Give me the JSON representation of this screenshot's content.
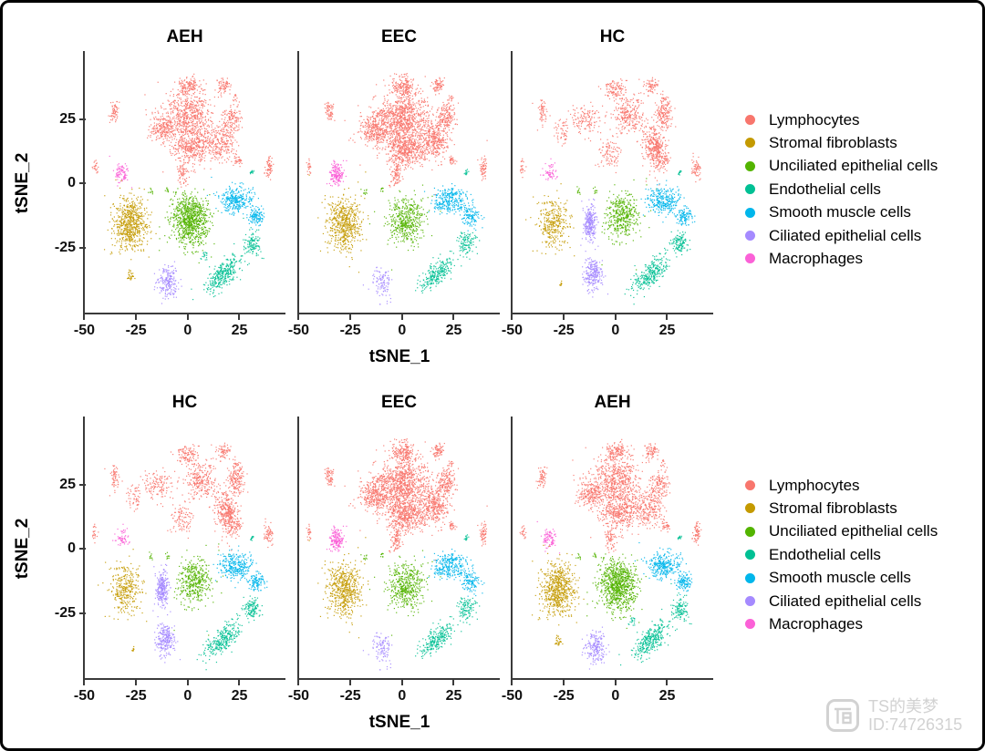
{
  "figures": [
    {
      "panels": [
        "AEH",
        "EEC",
        "HC"
      ]
    },
    {
      "panels": [
        "HC",
        "EEC",
        "AEH"
      ]
    }
  ],
  "axes": {
    "xlabel": "tSNE_1",
    "ylabel": "tSNE_2",
    "x_ticks": [
      "-50",
      "-25",
      "0",
      "25"
    ],
    "x_tick_values": [
      -50,
      -25,
      0,
      25
    ],
    "y_ticks": [
      "25",
      "0",
      "-25"
    ],
    "y_tick_values": [
      25,
      0,
      -25
    ]
  },
  "watermark": {
    "line1": "TS的美梦",
    "line2": "ID:74726315"
  },
  "chart_data": {
    "type": "scatter",
    "title": "",
    "xlabel": "tSNE_1",
    "ylabel": "tSNE_2",
    "xlim": [
      -50,
      46
    ],
    "ylim": [
      -51,
      51
    ],
    "grid": false,
    "legend_position": "right",
    "facets_row1": [
      "AEH",
      "EEC",
      "HC"
    ],
    "facets_row2": [
      "HC",
      "EEC",
      "AEH"
    ],
    "cell_types": [
      {
        "name": "Lymphocytes",
        "color": "#F8766D"
      },
      {
        "name": "Stromal fibroblasts",
        "color": "#C49A00"
      },
      {
        "name": "Unciliated epithelial cells",
        "color": "#53B400"
      },
      {
        "name": "Endothelial cells",
        "color": "#00C094"
      },
      {
        "name": "Smooth muscle cells",
        "color": "#00B6EB"
      },
      {
        "name": "Ciliated epithelial cells",
        "color": "#A58AFF"
      },
      {
        "name": "Macrophages",
        "color": "#FB61D7"
      }
    ],
    "cluster_format": "[cell_type_index, center_x, center_y, spread_x, spread_y, n_points, angle_deg]",
    "clusters": {
      "common": [
        [
          0,
          -45,
          6.5,
          1.5,
          3.5,
          22
        ],
        [
          0,
          -35.5,
          28,
          2.5,
          5,
          60
        ],
        [
          0,
          17,
          38,
          3.3,
          3.5,
          70
        ],
        [
          0,
          23,
          33,
          1.6,
          2,
          15
        ],
        [
          0,
          39,
          6,
          2.2,
          5,
          60
        ],
        [
          0,
          24,
          9,
          2,
          2.2,
          28
        ],
        [
          3,
          31,
          4.5,
          1.6,
          1,
          14,
          40
        ],
        [
          2,
          -18,
          -3,
          1.2,
          1.6,
          10
        ],
        [
          2,
          -10,
          -2.5,
          1,
          1.4,
          8
        ]
      ],
      "AEH": [
        [
          0,
          0,
          27,
          13,
          9,
          560
        ],
        [
          0,
          2,
          15,
          11,
          8,
          460
        ],
        [
          0,
          -12,
          21,
          7,
          6,
          210
        ],
        [
          0,
          16,
          16,
          7,
          7.5,
          230
        ],
        [
          0,
          21,
          25,
          5,
          5.5,
          130
        ],
        [
          0,
          0,
          38,
          7,
          4.5,
          140
        ],
        [
          0,
          -3,
          4,
          3,
          5.5,
          65
        ],
        [
          6,
          -32,
          4,
          3.6,
          4.4,
          85
        ],
        [
          1,
          -28,
          -15.5,
          9.5,
          12,
          640
        ],
        [
          1,
          -28,
          -36,
          2,
          2.5,
          28
        ],
        [
          2,
          1,
          -14,
          10,
          11,
          900
        ],
        [
          4,
          23,
          -6.5,
          9.5,
          5.5,
          310
        ],
        [
          4,
          33,
          -13,
          4.5,
          4,
          115
        ],
        [
          3,
          17,
          -35,
          11,
          5,
          320,
          38
        ],
        [
          3,
          31,
          -23,
          4.5,
          5,
          120
        ],
        [
          3,
          8,
          -28,
          2,
          2,
          18
        ],
        [
          5,
          -10,
          -38,
          5.5,
          6.5,
          200
        ]
      ],
      "EEC": [
        [
          0,
          0,
          26,
          14,
          10,
          830
        ],
        [
          0,
          2,
          14,
          12,
          8,
          650
        ],
        [
          0,
          -13,
          21,
          8,
          6.5,
          310
        ],
        [
          0,
          16,
          17,
          7,
          7.5,
          300
        ],
        [
          0,
          21,
          26,
          5,
          5.5,
          170
        ],
        [
          0,
          0,
          38,
          7,
          4.5,
          190
        ],
        [
          0,
          -3,
          4,
          3.2,
          5.5,
          95
        ],
        [
          6,
          -32,
          4,
          4,
          5,
          165
        ],
        [
          1,
          -28,
          -15.5,
          9.5,
          12,
          560
        ],
        [
          2,
          2,
          -14.5,
          10,
          10.5,
          470
        ],
        [
          4,
          23,
          -6.5,
          9.5,
          5.5,
          300
        ],
        [
          4,
          33,
          -13,
          4.5,
          4,
          115
        ],
        [
          3,
          17,
          -35,
          11,
          5,
          250,
          38
        ],
        [
          3,
          31,
          -23,
          4.5,
          5,
          110
        ],
        [
          5,
          -10,
          -38.5,
          5.5,
          6.5,
          105
        ]
      ],
      "HC": [
        [
          0,
          19,
          14,
          6,
          9.5,
          390,
          15
        ],
        [
          0,
          23,
          27,
          5,
          6,
          160
        ],
        [
          0,
          6,
          27,
          8,
          8,
          260
        ],
        [
          0,
          0,
          37,
          6.5,
          4.5,
          110
        ],
        [
          0,
          -14,
          25,
          8,
          7,
          130
        ],
        [
          0,
          -3,
          12,
          7,
          7,
          100
        ],
        [
          0,
          -26,
          21,
          4.5,
          5.5,
          55
        ],
        [
          6,
          -32,
          4,
          3.4,
          4.2,
          55
        ],
        [
          1,
          -30,
          -15.5,
          8.5,
          11,
          330
        ],
        [
          1,
          -27,
          -39,
          1.3,
          1.3,
          10
        ],
        [
          2,
          3,
          -13,
          9,
          10,
          430
        ],
        [
          4,
          23,
          -6.5,
          9.5,
          5.5,
          300
        ],
        [
          4,
          33,
          -13,
          4.5,
          4,
          115
        ],
        [
          3,
          17,
          -35,
          11,
          5,
          290,
          38
        ],
        [
          3,
          31,
          -23,
          4.5,
          5,
          125
        ],
        [
          5,
          -12.5,
          -15,
          3.5,
          8,
          270
        ],
        [
          5,
          -11,
          -35,
          5,
          7,
          240
        ]
      ]
    }
  }
}
